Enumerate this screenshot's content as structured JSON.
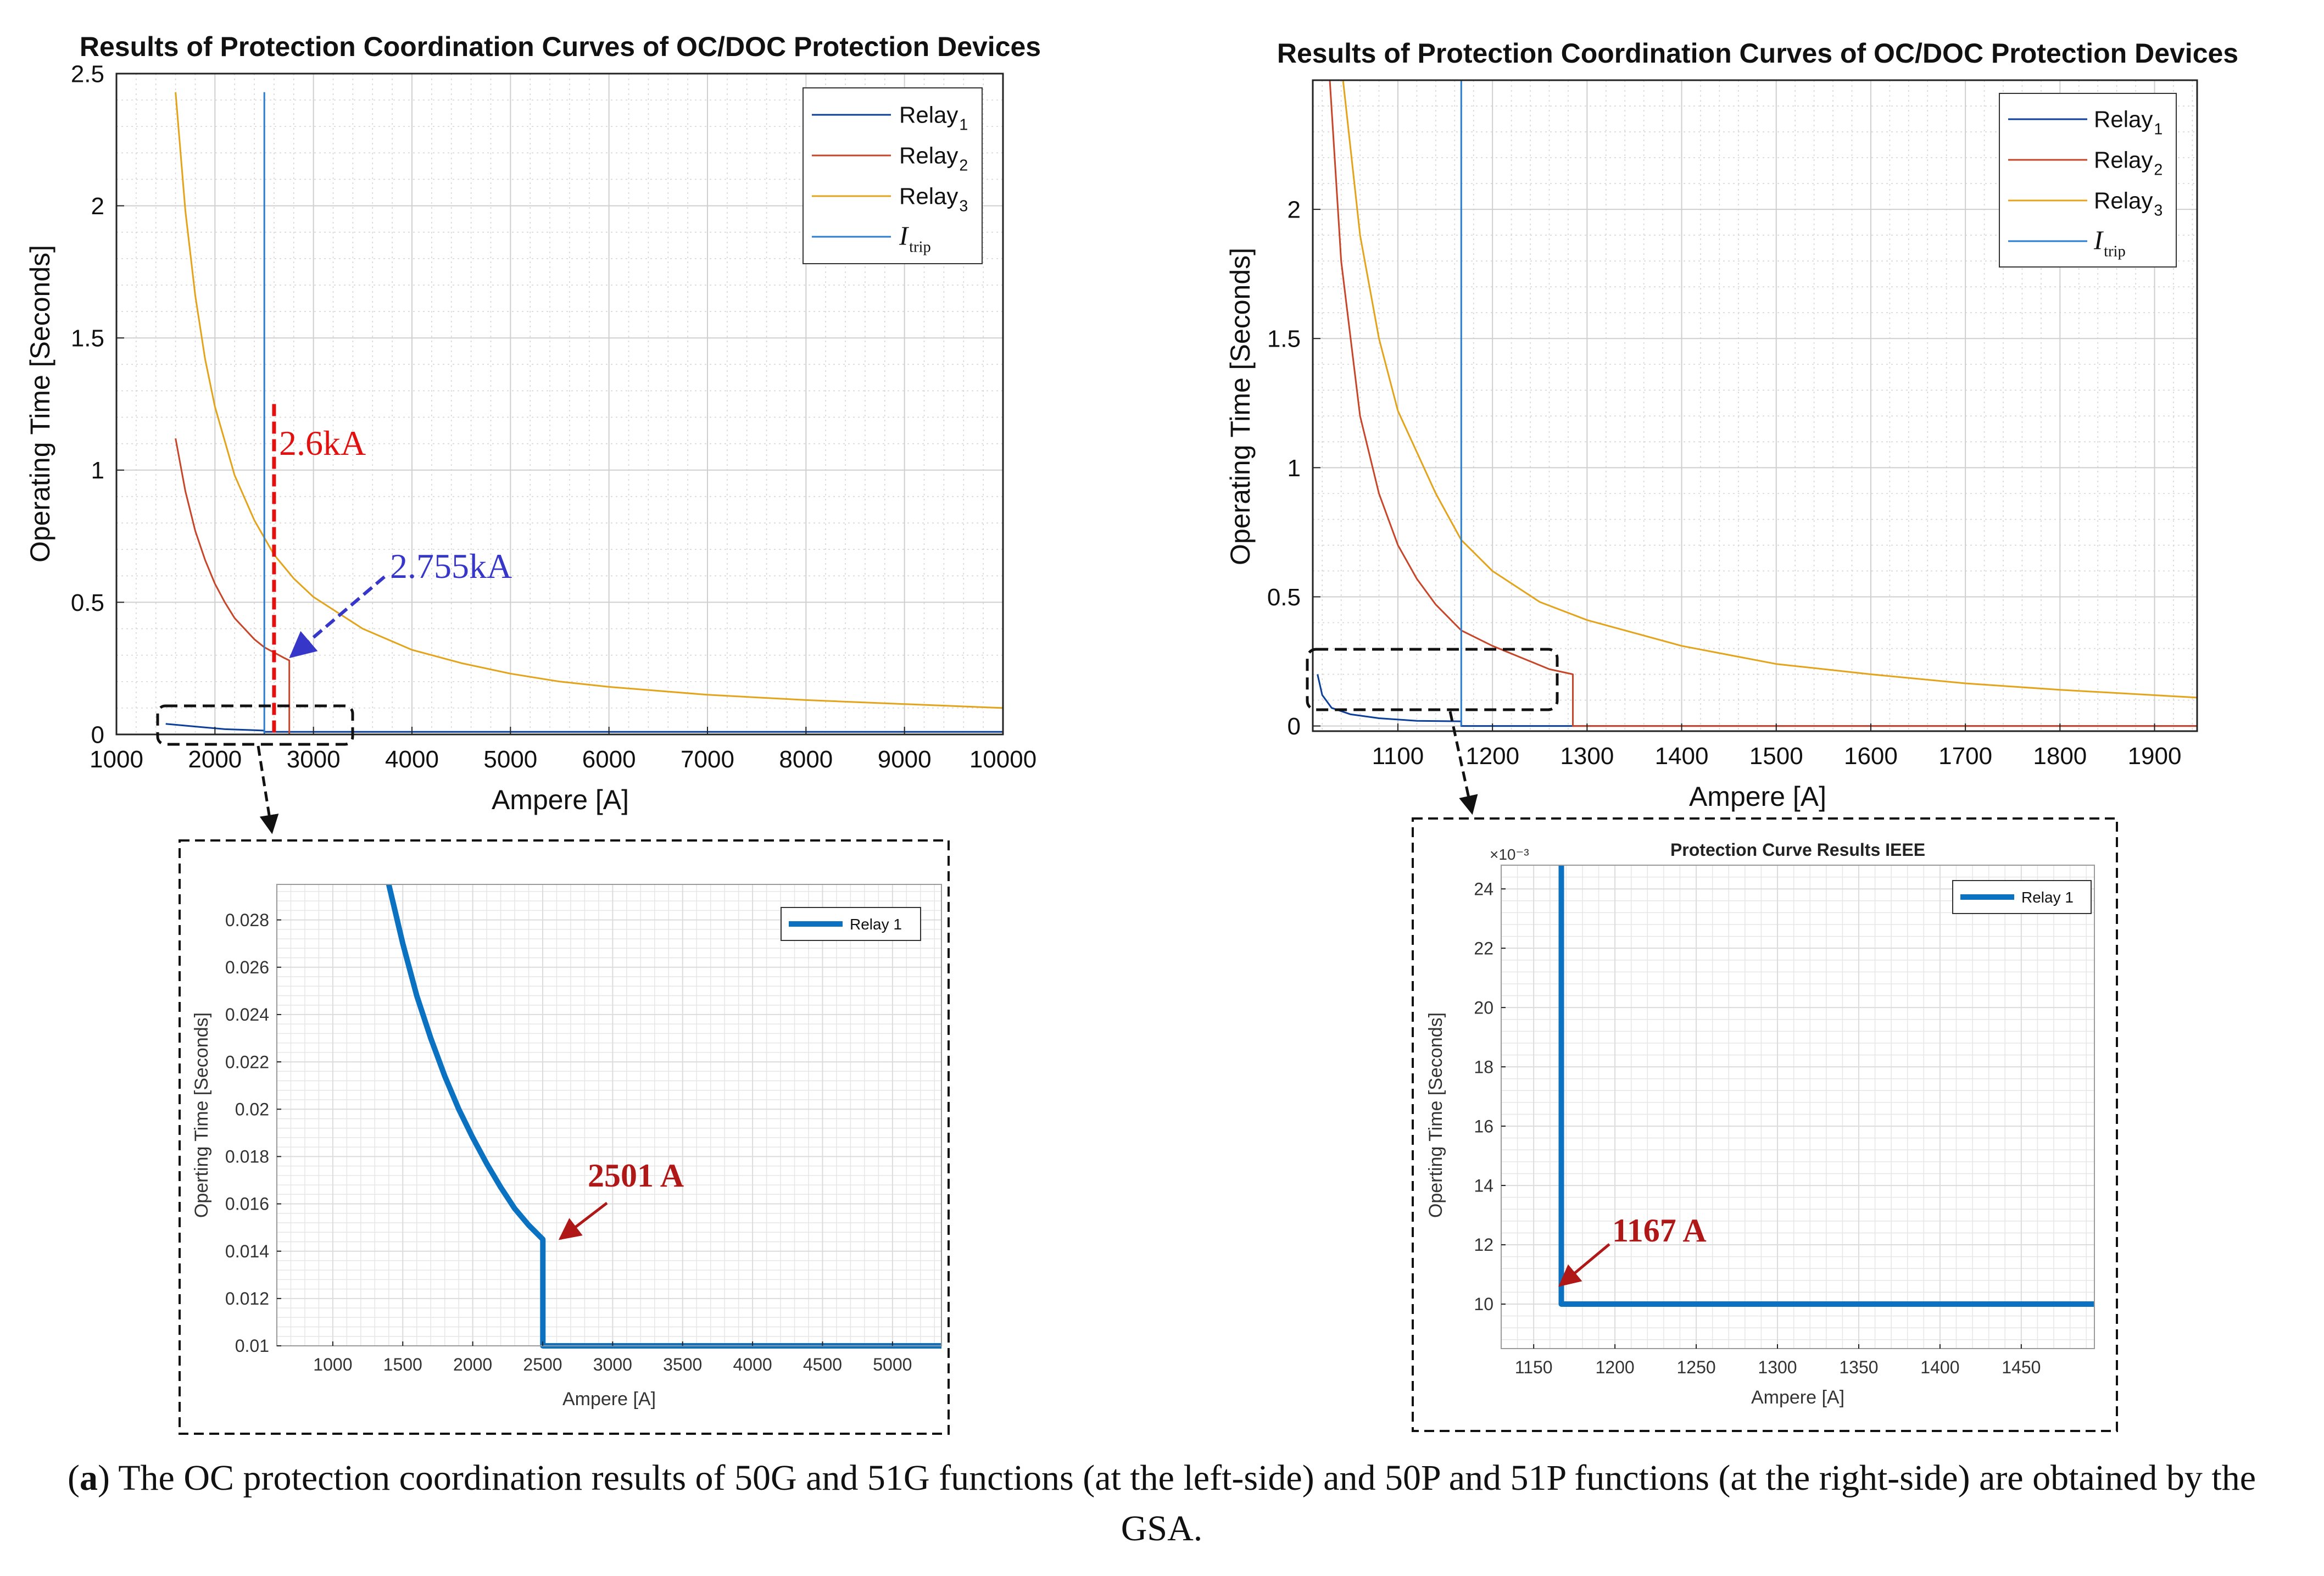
{
  "colors": {
    "relay1": "#0b3f99",
    "relay2": "#c7462a",
    "relay3": "#e3a41c",
    "itrip": "#2a7ed0",
    "annotation_red": "#e31010",
    "annotation_blue": "#3636c9",
    "annotation_darkred": "#b01818",
    "inset_line": "#0b72c1"
  },
  "caption": {
    "label": "a",
    "text": "The OC protection coordination results of 50G and 51G functions (at the left-side) and 50P and 51P functions (at the right-side) are obtained by the GSA."
  },
  "chart_data": [
    {
      "id": "left-main",
      "type": "line",
      "title": "Results of Protection Coordination Curves of OC/DOC Protection Devices",
      "xlabel": "Ampere [A]",
      "ylabel": "Operating Time [Seconds]",
      "xlim": [
        1000,
        10000
      ],
      "ylim": [
        0,
        2.5
      ],
      "xticks": [
        1000,
        2000,
        3000,
        4000,
        5000,
        6000,
        7000,
        8000,
        9000,
        10000
      ],
      "yticks": [
        0,
        0.5,
        1,
        1.5,
        2,
        2.5
      ],
      "yticklabels": [
        "0",
        "0.5",
        "1",
        "1.5",
        "2",
        "2.5"
      ],
      "grid": true,
      "legend_position": "top-right",
      "series": [
        {
          "name": "Relay1",
          "legend_main": "Relay",
          "legend_sub": "1",
          "color_key": "relay1",
          "points": [
            [
              1500,
              0.04
            ],
            [
              1800,
              0.03
            ],
            [
              2100,
              0.02
            ],
            [
              2400,
              0.016
            ],
            [
              2501,
              0.0145
            ],
            [
              2501,
              0.01
            ],
            [
              10000,
              0.01
            ]
          ]
        },
        {
          "name": "Relay2",
          "legend_main": "Relay",
          "legend_sub": "2",
          "color_key": "relay2",
          "points": [
            [
              1600,
              1.12
            ],
            [
              1700,
              0.92
            ],
            [
              1800,
              0.77
            ],
            [
              1900,
              0.66
            ],
            [
              2000,
              0.57
            ],
            [
              2100,
              0.5
            ],
            [
              2200,
              0.44
            ],
            [
              2300,
              0.4
            ],
            [
              2400,
              0.36
            ],
            [
              2500,
              0.33
            ],
            [
              2600,
              0.31
            ],
            [
              2700,
              0.29
            ],
            [
              2755,
              0.28
            ],
            [
              2755,
              0.0
            ],
            [
              10000,
              0.0
            ]
          ]
        },
        {
          "name": "Relay3",
          "legend_main": "Relay",
          "legend_sub": "3",
          "color_key": "relay3",
          "points": [
            [
              1600,
              2.43
            ],
            [
              1700,
              1.98
            ],
            [
              1800,
              1.66
            ],
            [
              1900,
              1.42
            ],
            [
              2000,
              1.24
            ],
            [
              2200,
              0.98
            ],
            [
              2400,
              0.81
            ],
            [
              2600,
              0.68
            ],
            [
              2800,
              0.59
            ],
            [
              3000,
              0.52
            ],
            [
              3500,
              0.4
            ],
            [
              4000,
              0.32
            ],
            [
              4500,
              0.27
            ],
            [
              5000,
              0.23
            ],
            [
              5500,
              0.2
            ],
            [
              6000,
              0.18
            ],
            [
              7000,
              0.15
            ],
            [
              8000,
              0.13
            ],
            [
              9000,
              0.115
            ],
            [
              10000,
              0.1
            ]
          ]
        },
        {
          "name": "Itrip",
          "legend_main": "I",
          "legend_sub": "trip",
          "color_key": "itrip",
          "points": [
            [
              2501,
              0.0
            ],
            [
              2501,
              2.43
            ]
          ]
        }
      ],
      "annotations": [
        {
          "text": "2.6kA",
          "x": 2600,
          "color_key": "annotation_red"
        },
        {
          "text": "2.755kA",
          "x": 2755,
          "y": 0.3,
          "color_key": "annotation_blue"
        }
      ]
    },
    {
      "id": "right-main",
      "type": "line",
      "title": "Results of Protection Coordination Curves of OC/DOC Protection Devices",
      "xlabel": "Ampere [A]",
      "ylabel": "Operating Time [Seconds]",
      "xlim": [
        1010,
        1945
      ],
      "ylim": [
        -0.02,
        2.5
      ],
      "xticks": [
        1100,
        1200,
        1300,
        1400,
        1500,
        1600,
        1700,
        1800,
        1900
      ],
      "yticks": [
        0,
        0.5,
        1,
        1.5,
        2
      ],
      "yticklabels": [
        "0",
        "0.5",
        "1",
        "1.5",
        "2"
      ],
      "grid": true,
      "legend_position": "top-right",
      "series": [
        {
          "name": "Relay1",
          "legend_main": "Relay",
          "legend_sub": "1",
          "color_key": "relay1",
          "points": [
            [
              1015,
              0.2
            ],
            [
              1020,
              0.12
            ],
            [
              1030,
              0.07
            ],
            [
              1050,
              0.045
            ],
            [
              1080,
              0.03
            ],
            [
              1120,
              0.02
            ],
            [
              1167,
              0.018
            ],
            [
              1167,
              0.0
            ],
            [
              1945,
              0.0
            ]
          ]
        },
        {
          "name": "Relay2",
          "legend_main": "Relay",
          "legend_sub": "2",
          "color_key": "relay2",
          "points": [
            [
              1028,
              2.5
            ],
            [
              1040,
              1.8
            ],
            [
              1060,
              1.2
            ],
            [
              1080,
              0.9
            ],
            [
              1100,
              0.7
            ],
            [
              1120,
              0.57
            ],
            [
              1140,
              0.47
            ],
            [
              1167,
              0.37
            ],
            [
              1200,
              0.31
            ],
            [
              1240,
              0.25
            ],
            [
              1260,
              0.22
            ],
            [
              1285,
              0.2
            ],
            [
              1285,
              0.0
            ],
            [
              1945,
              0.0
            ]
          ]
        },
        {
          "name": "Relay3",
          "legend_main": "Relay",
          "legend_sub": "3",
          "color_key": "relay3",
          "points": [
            [
              1042,
              2.5
            ],
            [
              1060,
              1.9
            ],
            [
              1080,
              1.5
            ],
            [
              1100,
              1.22
            ],
            [
              1140,
              0.9
            ],
            [
              1167,
              0.72
            ],
            [
              1200,
              0.6
            ],
            [
              1250,
              0.48
            ],
            [
              1300,
              0.41
            ],
            [
              1400,
              0.31
            ],
            [
              1500,
              0.24
            ],
            [
              1600,
              0.2
            ],
            [
              1700,
              0.165
            ],
            [
              1800,
              0.14
            ],
            [
              1945,
              0.11
            ]
          ]
        },
        {
          "name": "Itrip",
          "legend_main": "I",
          "legend_sub": "trip",
          "color_key": "itrip",
          "points": [
            [
              1167,
              0.0
            ],
            [
              1167,
              2.5
            ]
          ]
        }
      ],
      "annotations": []
    },
    {
      "id": "left-inset",
      "type": "line",
      "title": "",
      "xlabel": "Ampere [A]",
      "ylabel": "Operting Time [Seconds]",
      "xlim": [
        600,
        5350
      ],
      "ylim": [
        0.01,
        0.0295
      ],
      "xticks": [
        1000,
        1500,
        2000,
        2500,
        3000,
        3500,
        4000,
        4500,
        5000
      ],
      "yticks": [
        0.01,
        0.012,
        0.014,
        0.016,
        0.018,
        0.02,
        0.022,
        0.024,
        0.026,
        0.028
      ],
      "yticklabels": [
        "0.01",
        "0.012",
        "0.014",
        "0.016",
        "0.018",
        "0.02",
        "0.022",
        "0.024",
        "0.026",
        "0.028"
      ],
      "grid": true,
      "legend_position": "top-right",
      "series": [
        {
          "name": "Relay 1",
          "legend_main": "Relay 1",
          "legend_sub": "",
          "color_key": "inset_line",
          "points": [
            [
              1400,
              0.0295
            ],
            [
              1500,
              0.027
            ],
            [
              1600,
              0.0248
            ],
            [
              1700,
              0.023
            ],
            [
              1800,
              0.0214
            ],
            [
              1900,
              0.02
            ],
            [
              2000,
              0.0188
            ],
            [
              2100,
              0.0177
            ],
            [
              2200,
              0.0167
            ],
            [
              2300,
              0.0158
            ],
            [
              2400,
              0.0151
            ],
            [
              2501,
              0.0145
            ],
            [
              2501,
              0.01
            ],
            [
              5350,
              0.01
            ]
          ]
        }
      ],
      "annotations": [
        {
          "text": "2501 A",
          "x": 2501,
          "y": 0.0145,
          "color_key": "annotation_darkred"
        }
      ]
    },
    {
      "id": "right-inset",
      "type": "line",
      "title": "Protection Curve Results IEEE",
      "xlabel": "Ampere [A]",
      "ylabel": "Operting Time [Seconds]",
      "exponent_label": "×10⁻³",
      "xlim": [
        1130,
        1495
      ],
      "ylim": [
        8.5,
        24.8
      ],
      "xticks": [
        1150,
        1200,
        1250,
        1300,
        1350,
        1400,
        1450
      ],
      "yticks": [
        10,
        12,
        14,
        16,
        18,
        20,
        22,
        24
      ],
      "yticklabels": [
        "10",
        "12",
        "14",
        "16",
        "18",
        "20",
        "22",
        "24"
      ],
      "grid": true,
      "legend_position": "top-right",
      "series": [
        {
          "name": "Relay 1",
          "legend_main": "Relay 1",
          "legend_sub": "",
          "color_key": "inset_line",
          "points": [
            [
              1167,
              24.8
            ],
            [
              1167,
              10
            ],
            [
              1495,
              10
            ]
          ]
        }
      ],
      "annotations": [
        {
          "text": "1167 A",
          "x": 1167,
          "y": 10,
          "color_key": "annotation_darkred"
        }
      ]
    }
  ]
}
